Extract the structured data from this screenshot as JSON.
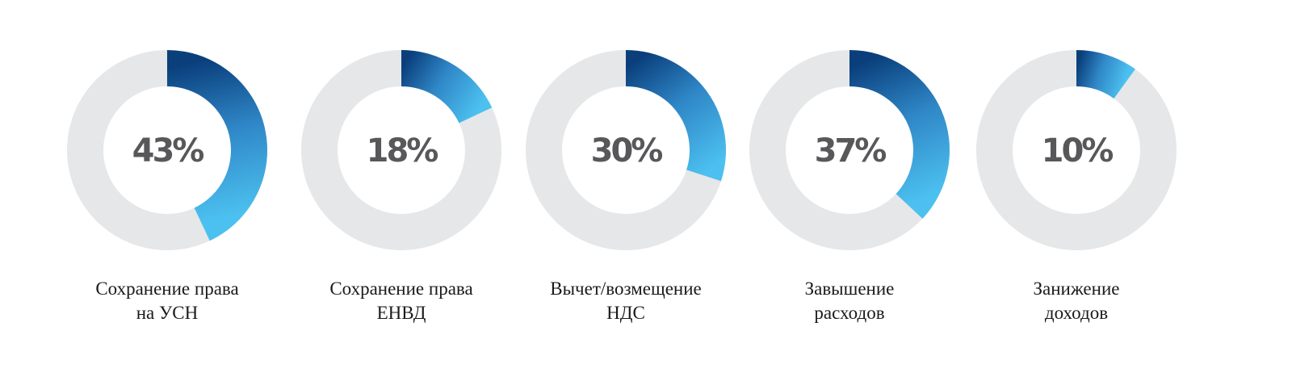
{
  "chart_data": {
    "type": "pie",
    "subtype": "donut-gauges",
    "colors": {
      "track": "#e6e7e8",
      "gradient_dark": "#0a3f7c",
      "gradient_mid": "#2f86c6",
      "gradient_light": "#4cc1f0"
    },
    "items": [
      {
        "value": 43,
        "value_label": "43%",
        "label_lines": [
          "Сохранение права",
          "на УСН"
        ]
      },
      {
        "value": 18,
        "value_label": "18%",
        "label_lines": [
          "Сохранение права",
          "ЕНВД"
        ]
      },
      {
        "value": 30,
        "value_label": "30%",
        "label_lines": [
          "Вычет/возмещение",
          "НДС"
        ]
      },
      {
        "value": 37,
        "value_label": "37%",
        "label_lines": [
          "Завышение",
          "расходов"
        ]
      },
      {
        "value": 10,
        "value_label": "10%",
        "label_lines": [
          "Занижение",
          "доходов"
        ]
      }
    ]
  }
}
